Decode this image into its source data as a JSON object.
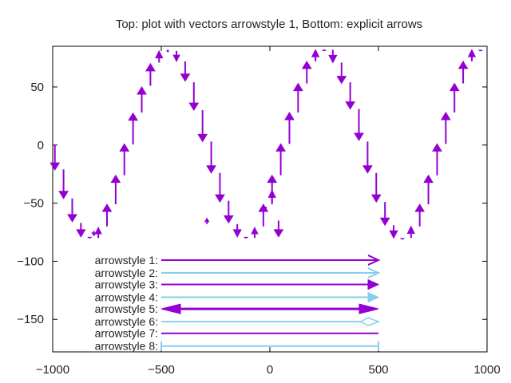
{
  "chart_data": {
    "type": "vector",
    "title": "Top: plot with vectors arrowstyle 1, Bottom: explicit arrows",
    "xlabel": "",
    "ylabel": "",
    "xlim": [
      -1000,
      1000
    ],
    "ylim": [
      -178,
      85
    ],
    "xticks": [
      -1000,
      -500,
      0,
      500,
      1000
    ],
    "xtick_labels": [
      "−1000",
      "−500",
      "0",
      "500",
      "1000"
    ],
    "yticks": [
      50,
      0,
      -50,
      -100,
      -150
    ],
    "ytick_labels": [
      "50",
      "0",
      "−50",
      "−100",
      "−150"
    ],
    "colors": {
      "purple": "#9400d3",
      "skyblue": "#87ceeb"
    },
    "vectors": {
      "x": [
        -990,
        -950,
        -910,
        -870,
        -830,
        -790,
        -750,
        -710,
        -670,
        -630,
        -590,
        -550,
        -510,
        -470,
        -430,
        -390,
        -350,
        -310,
        -270,
        -230,
        -190,
        -150,
        -110,
        -70,
        -30,
        10,
        50,
        90,
        130,
        170,
        210,
        250,
        290,
        330,
        370,
        410,
        450,
        490,
        530,
        570,
        610,
        650,
        690,
        730,
        770,
        810,
        850,
        890,
        930,
        970
      ],
      "y": [
        0.5,
        -21,
        -46,
        -67,
        -79,
        -80,
        -70,
        -51,
        -26,
        0.5,
        28,
        51,
        71,
        81,
        81,
        72,
        54,
        30,
        3,
        -24,
        -48,
        -68,
        -79,
        -80,
        -70,
        -51,
        -26,
        1,
        28,
        53,
        72,
        81,
        82,
        71,
        54,
        31,
        3,
        -24,
        -49,
        -69,
        -80,
        -80,
        -70,
        -51,
        -26,
        1,
        28,
        53,
        72,
        82
      ],
      "dy": [
        -22,
        -25,
        -20,
        -12,
        -1,
        9,
        19,
        25,
        27,
        27,
        22,
        19,
        10,
        0,
        -9,
        -17,
        -24,
        -27,
        -27,
        -25,
        -19,
        -11,
        -1,
        9,
        19,
        25,
        27,
        27,
        25,
        19,
        10,
        1,
        -11,
        -18,
        -23,
        -27,
        -27,
        -25,
        -20,
        -11,
        -1,
        10,
        19,
        25,
        27,
        27,
        25,
        19,
        10,
        -1
      ]
    },
    "extra_vectors": [
      {
        "x": -810,
        "y": -74,
        "dy": -4
      },
      {
        "x": -290,
        "y": -68,
        "dy": 5
      },
      {
        "x": -20,
        "y": -54,
        "dy": 0
      },
      {
        "x": 10,
        "y": -49,
        "dy": 10
      },
      {
        "x": 40,
        "y": -65,
        "dy": -14
      }
    ],
    "explicit_arrows": [
      {
        "label": "arrowstyle 1:",
        "y": -99,
        "x0": -500,
        "x1": 500,
        "color": "#9400d3",
        "head": "open-end",
        "width": 2
      },
      {
        "label": "arrowstyle 2:",
        "y": -110,
        "x0": -500,
        "x1": 500,
        "color": "#87ceeb",
        "head": "open-end",
        "width": 2
      },
      {
        "label": "arrowstyle 3:",
        "y": -120,
        "x0": -500,
        "x1": 500,
        "color": "#9400d3",
        "head": "filled-end",
        "width": 2
      },
      {
        "label": "arrowstyle 4:",
        "y": -131,
        "x0": -500,
        "x1": 500,
        "color": "#87ceeb",
        "head": "filled-end",
        "width": 2
      },
      {
        "label": "arrowstyle 5:",
        "y": -141,
        "x0": -500,
        "x1": 500,
        "color": "#9400d3",
        "head": "filled-both",
        "width": 3
      },
      {
        "label": "arrowstyle 6:",
        "y": -152,
        "x0": -500,
        "x1": 500,
        "color": "#87ceeb",
        "head": "empty-end",
        "width": 2
      },
      {
        "label": "arrowstyle 7:",
        "y": -162,
        "x0": -500,
        "x1": 500,
        "color": "#9400d3",
        "head": "none",
        "width": 2
      },
      {
        "label": "arrowstyle 8:",
        "y": -173,
        "x0": -500,
        "x1": 500,
        "color": "#87ceeb",
        "head": "bars",
        "width": 2
      }
    ]
  }
}
